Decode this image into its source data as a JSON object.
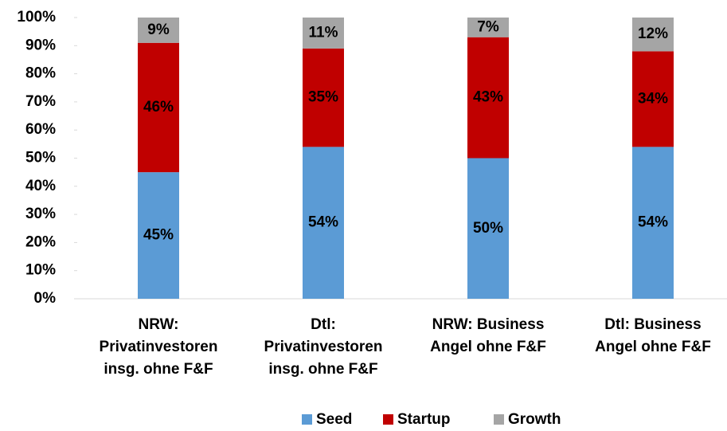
{
  "chart_data": {
    "type": "stacked_bar",
    "categories": [
      "NRW: Privatinvestoren insg. ohne F&F",
      "Dtl: Privatinvestoren insg. ohne F&F",
      "NRW: Business Angel ohne F&F",
      "Dtl: Business Angel ohne F&F"
    ],
    "series": [
      {
        "name": "Seed",
        "color": "#5b9bd5",
        "values": [
          45,
          54,
          50,
          54
        ],
        "value_labels": [
          "45%",
          "54%",
          "50%",
          "54%"
        ]
      },
      {
        "name": "Startup",
        "color": "#c00000",
        "values": [
          46,
          35,
          43,
          34
        ],
        "value_labels": [
          "46%",
          "35%",
          "43%",
          "34%"
        ]
      },
      {
        "name": "Growth",
        "color": "#a5a5a5",
        "values": [
          9,
          11,
          7,
          12
        ],
        "value_labels": [
          "9%",
          "11%",
          "7%",
          "12%"
        ]
      }
    ],
    "ylim": [
      0,
      100
    ],
    "yticks": [
      {
        "value": 0,
        "label": "0%"
      },
      {
        "value": 10,
        "label": "10%"
      },
      {
        "value": 20,
        "label": "20%"
      },
      {
        "value": 30,
        "label": "30%"
      },
      {
        "value": 40,
        "label": "40%"
      },
      {
        "value": 50,
        "label": "50%"
      },
      {
        "value": 60,
        "label": "60%"
      },
      {
        "value": 70,
        "label": "70%"
      },
      {
        "value": 80,
        "label": "80%"
      },
      {
        "value": 90,
        "label": "90%"
      },
      {
        "value": 100,
        "label": "100%"
      }
    ],
    "grid": false,
    "legend": "bottom"
  }
}
